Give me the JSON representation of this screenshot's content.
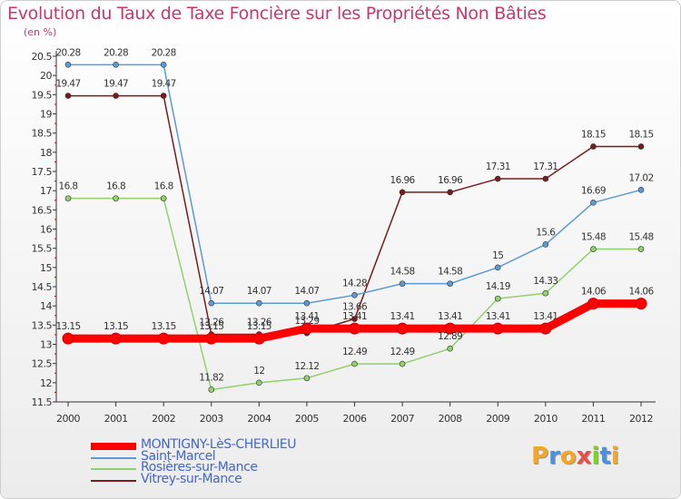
{
  "chart_data": {
    "type": "line",
    "title": "Evolution du Taux de Taxe Foncière sur les Propriétés Non Bâties",
    "subtitle": "(en %)",
    "x": [
      "2000",
      "2001",
      "2002",
      "2003",
      "2004",
      "2005",
      "2006",
      "2007",
      "2008",
      "2009",
      "2010",
      "2011",
      "2012"
    ],
    "ylim": [
      11.5,
      20.5
    ],
    "yticks": [
      "11.5",
      "12",
      "12.5",
      "13",
      "13.5",
      "14",
      "14.5",
      "15",
      "15.5",
      "16",
      "16.5",
      "17",
      "17.5",
      "18",
      "18.5",
      "19",
      "19.5",
      "20",
      "20.5"
    ],
    "grid": false,
    "legend_position": "bottom-left",
    "series": [
      {
        "name": "MONTIGNY-LèS-CHERLIEU",
        "color": "#ff0000",
        "values": [
          13.15,
          13.15,
          13.15,
          13.15,
          13.15,
          13.41,
          13.41,
          13.41,
          13.41,
          13.41,
          13.41,
          14.06,
          14.06
        ],
        "labels": [
          "13.15",
          "13.15",
          "13.15",
          "13.15",
          "13.15",
          "13.41",
          "13.41",
          "13.41",
          "13.41",
          "13.41",
          "13.41",
          "14.06",
          "14.06"
        ]
      },
      {
        "name": "Saint-Marcel",
        "color": "#5b9bd5",
        "values": [
          20.28,
          20.28,
          20.28,
          14.07,
          14.07,
          14.07,
          14.28,
          14.58,
          14.58,
          15,
          15.6,
          16.69,
          17.02
        ],
        "labels": [
          "20.28",
          "20.28",
          "20.28",
          "14.07",
          "14.07",
          "14.07",
          "14.28",
          "14.58",
          "14.58",
          "15",
          "15.6",
          "16.69",
          "17.02"
        ]
      },
      {
        "name": "Rosières-sur-Mance",
        "color": "#8fd16b",
        "values": [
          16.8,
          16.8,
          16.8,
          11.82,
          12,
          12.12,
          12.49,
          12.49,
          12.89,
          14.19,
          14.33,
          15.48,
          15.48
        ],
        "labels": [
          "16.8",
          "16.8",
          "16.8",
          "11.82",
          "12",
          "12.12",
          "12.49",
          "12.49",
          "12.89",
          "14.19",
          "14.33",
          "15.48",
          "15.48"
        ]
      },
      {
        "name": "Vitrey-sur-Mance",
        "color": "#7a1c1c",
        "values": [
          19.47,
          19.47,
          19.47,
          13.26,
          13.26,
          13.29,
          13.66,
          16.96,
          16.96,
          17.31,
          17.31,
          18.15,
          18.15
        ],
        "labels": [
          "19.47",
          "19.47",
          "19.47",
          "13.26",
          "13.26",
          "13.29",
          "13.66",
          "16.96",
          "16.96",
          "17.31",
          "17.31",
          "18.15",
          "18.15"
        ]
      }
    ]
  },
  "logo": {
    "letters": [
      "P",
      "r",
      "o",
      "x",
      "i",
      "t",
      "i"
    ],
    "colors": [
      "#f5a623",
      "#4a90e2",
      "#f5a623",
      "#e94e4e",
      "#7ed321",
      "#4a90e2",
      "#f5a623"
    ]
  }
}
